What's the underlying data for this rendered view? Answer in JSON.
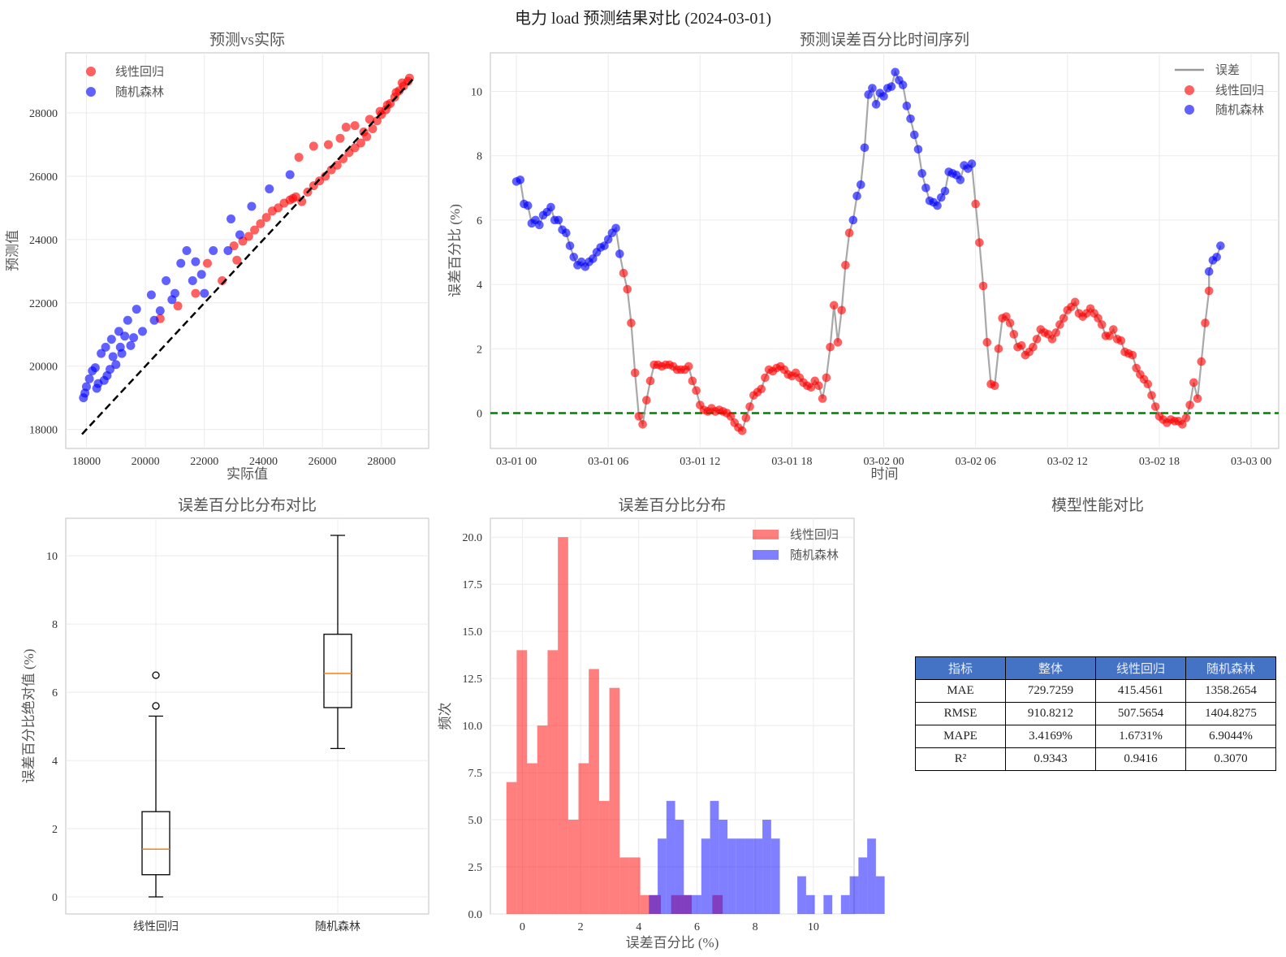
{
  "title": "电力 load 预测结果对比 (2024-03-01)",
  "colors": {
    "lr": "#ff0000",
    "rf": "#0000ff",
    "line": "#999999",
    "zero": "#008000",
    "header": "#4472c4"
  },
  "chart_data": [
    {
      "type": "scatter",
      "title": "预测vs实际",
      "xlabel": "实际值",
      "ylabel": "预测值",
      "xlim": [
        17300,
        29600
      ],
      "ylim": [
        17400,
        29900
      ],
      "xticks": [
        18000,
        20000,
        22000,
        24000,
        26000,
        28000
      ],
      "yticks": [
        18000,
        20000,
        22000,
        24000,
        26000,
        28000
      ],
      "legend": [
        "线性回归",
        "随机森林"
      ],
      "diagonal": [
        17850,
        29100
      ],
      "series": [
        {
          "name": "线性回归",
          "points": [
            [
              20500,
              21500
            ],
            [
              21100,
              21900
            ],
            [
              21700,
              22300
            ],
            [
              22100,
              23250
            ],
            [
              22600,
              22700
            ],
            [
              23000,
              23800
            ],
            [
              23100,
              23350
            ],
            [
              23300,
              23950
            ],
            [
              23500,
              24100
            ],
            [
              23700,
              24300
            ],
            [
              23900,
              24500
            ],
            [
              24100,
              24700
            ],
            [
              24300,
              24900
            ],
            [
              24500,
              25000
            ],
            [
              24700,
              25150
            ],
            [
              24900,
              25250
            ],
            [
              25100,
              25350
            ],
            [
              25300,
              25200
            ],
            [
              25500,
              25500
            ],
            [
              25700,
              25700
            ],
            [
              25900,
              25850
            ],
            [
              26100,
              26000
            ],
            [
              26300,
              26200
            ],
            [
              26500,
              26350
            ],
            [
              26700,
              26550
            ],
            [
              26900,
              26750
            ],
            [
              27100,
              26900
            ],
            [
              27300,
              27050
            ],
            [
              27500,
              27250
            ],
            [
              27700,
              27500
            ],
            [
              27850,
              27750
            ],
            [
              28000,
              27950
            ],
            [
              28150,
              28100
            ],
            [
              28300,
              28300
            ],
            [
              28450,
              28500
            ],
            [
              28600,
              28700
            ],
            [
              28750,
              28850
            ],
            [
              28900,
              29000
            ],
            [
              28950,
              29100
            ],
            [
              25000,
              25300
            ],
            [
              25200,
              26600
            ],
            [
              25700,
              26950
            ],
            [
              26200,
              27000
            ],
            [
              26600,
              27200
            ],
            [
              26800,
              27550
            ],
            [
              27100,
              27600
            ],
            [
              27400,
              27400
            ],
            [
              27600,
              27800
            ],
            [
              27950,
              28050
            ],
            [
              28200,
              28250
            ],
            [
              28500,
              28650
            ],
            [
              28700,
              28950
            ]
          ]
        },
        {
          "name": "随机森林",
          "points": [
            [
              17900,
              19000
            ],
            [
              17950,
              19150
            ],
            [
              18000,
              19350
            ],
            [
              18100,
              19600
            ],
            [
              18200,
              19850
            ],
            [
              18300,
              19950
            ],
            [
              18350,
              19300
            ],
            [
              18400,
              19450
            ],
            [
              18500,
              20400
            ],
            [
              18600,
              19550
            ],
            [
              18650,
              20600
            ],
            [
              18700,
              19700
            ],
            [
              18800,
              19900
            ],
            [
              18850,
              20850
            ],
            [
              18900,
              20300
            ],
            [
              19000,
              20050
            ],
            [
              19100,
              21100
            ],
            [
              19150,
              20600
            ],
            [
              19200,
              20400
            ],
            [
              19300,
              20950
            ],
            [
              19400,
              21450
            ],
            [
              19500,
              20650
            ],
            [
              19600,
              20900
            ],
            [
              19700,
              21800
            ],
            [
              19900,
              21100
            ],
            [
              20200,
              22250
            ],
            [
              20300,
              21450
            ],
            [
              20500,
              21750
            ],
            [
              20700,
              22700
            ],
            [
              20900,
              22100
            ],
            [
              21000,
              22300
            ],
            [
              21200,
              23250
            ],
            [
              21400,
              23650
            ],
            [
              21600,
              22700
            ],
            [
              21700,
              23300
            ],
            [
              21900,
              22900
            ],
            [
              22300,
              23650
            ],
            [
              22800,
              23650
            ],
            [
              22900,
              24650
            ],
            [
              23200,
              24150
            ],
            [
              23600,
              25050
            ],
            [
              24200,
              25600
            ],
            [
              24900,
              26050
            ],
            [
              22000,
              22300
            ]
          ]
        }
      ]
    },
    {
      "type": "line",
      "title": "预测误差百分比时间序列",
      "xlabel": "时间",
      "ylabel": "误差百分比 (%)",
      "xlim": [
        -1.7,
        49.8
      ],
      "ylim": [
        -1.1,
        11.2
      ],
      "xticks": [
        0,
        6,
        12,
        18,
        24,
        30,
        36,
        42,
        48
      ],
      "xticklabels": [
        "03-01 00",
        "03-01 06",
        "03-01 12",
        "03-01 18",
        "03-02 00",
        "03-02 06",
        "03-02 12",
        "03-02 18",
        "03-03 00"
      ],
      "yticks": [
        0,
        2,
        4,
        6,
        8,
        10
      ],
      "legend": [
        "误差",
        "线性回归",
        "随机森林"
      ],
      "zero_line": 0,
      "segments": [
        {
          "model": "随机森林",
          "start": 0,
          "step": 0.25,
          "values": [
            7.2,
            7.25,
            6.5,
            6.45,
            5.9,
            6.0,
            5.85,
            6.15,
            6.25,
            6.4,
            6.0,
            6.0,
            5.7,
            5.6,
            5.2,
            4.85,
            4.6,
            4.7,
            4.55,
            4.7,
            4.8,
            5.0,
            5.15,
            5.2,
            5.4,
            5.6,
            5.75,
            4.95
          ]
        },
        {
          "model": "线性回归",
          "start": 7.0,
          "step": 0.25,
          "values": [
            4.35,
            3.85,
            2.8,
            1.25,
            -0.1,
            -0.35,
            0.4,
            1.0,
            1.5,
            1.5,
            1.45,
            1.5,
            1.5,
            1.45,
            1.35,
            1.35,
            1.35,
            1.45,
            1.0,
            0.7,
            0.25,
            0.1,
            0.05,
            0.15,
            0.05,
            0.1,
            0.05,
            0.0,
            -0.1,
            -0.3,
            -0.45,
            -0.55,
            -0.15,
            0.2,
            0.55,
            0.65,
            0.75,
            1.1,
            1.35,
            1.3,
            1.4,
            1.45,
            1.35,
            1.2,
            1.15,
            1.25,
            1.1,
            0.95,
            0.85,
            0.8,
            1.0,
            0.85,
            0.45,
            1.1,
            2.05,
            3.35,
            2.2,
            3.2,
            4.6,
            5.6
          ]
        },
        {
          "model": "随机森林",
          "start": 22.0,
          "step": 0.25,
          "values": [
            6.0,
            6.75,
            7.1,
            8.25,
            9.9,
            10.1,
            9.6,
            9.95,
            9.85,
            10.1,
            10.15,
            10.6,
            10.35,
            10.2,
            9.55,
            9.15,
            8.65,
            8.2,
            7.45,
            7.0,
            6.6,
            6.55,
            6.45,
            6.7,
            6.9,
            7.5,
            7.45,
            7.4,
            7.25,
            7.7,
            7.6,
            7.75
          ]
        },
        {
          "model": "线性回归",
          "start": 30.0,
          "step": 0.25,
          "values": [
            6.5,
            5.3,
            3.95,
            2.2,
            0.9,
            0.85,
            2.0,
            2.95,
            3.0,
            2.8,
            2.45,
            2.05,
            2.1,
            1.8,
            1.9,
            2.05,
            2.3,
            2.6,
            2.5,
            2.45,
            2.3,
            2.5,
            2.75,
            2.95,
            3.2,
            3.3,
            3.45,
            3.1,
            3.0,
            3.1,
            3.25,
            3.1,
            2.95,
            2.75,
            2.4,
            2.4,
            2.6,
            2.3,
            2.25,
            1.9,
            1.85,
            1.8,
            1.4,
            1.2,
            1.05,
            0.9,
            0.55,
            0.2,
            -0.1,
            -0.2,
            -0.3,
            -0.2,
            -0.25,
            -0.25,
            -0.35,
            -0.15,
            0.25,
            0.95,
            0.45,
            1.6,
            2.8,
            3.8
          ]
        },
        {
          "model": "随机森林",
          "start": 45.25,
          "step": 0.25,
          "values": [
            4.4,
            4.75,
            4.85,
            5.2
          ]
        }
      ]
    },
    {
      "type": "box",
      "title": "误差百分比分布对比",
      "ylabel": "误差百分比绝对值 (%)",
      "ylim": [
        -0.5,
        11.1
      ],
      "yticks": [
        0,
        2,
        4,
        6,
        8,
        10
      ],
      "categories": [
        "线性回归",
        "随机森林"
      ],
      "boxes": [
        {
          "name": "线性回归",
          "whislo": 0.0,
          "q1": 0.65,
          "med": 1.4,
          "q3": 2.5,
          "whishi": 5.3,
          "fliers": [
            5.6,
            6.5
          ]
        },
        {
          "name": "随机森林",
          "whislo": 4.35,
          "q1": 5.55,
          "med": 6.55,
          "q3": 7.7,
          "whishi": 10.6,
          "fliers": []
        }
      ]
    },
    {
      "type": "histogram",
      "title": "误差百分比分布",
      "xlabel": "误差百分比 (%)",
      "ylabel": "频次",
      "xlim": [
        -1.1,
        11.4
      ],
      "ylim": [
        0,
        21
      ],
      "xticks": [
        0,
        2,
        4,
        6,
        8,
        10
      ],
      "yticks": [
        0.0,
        2.5,
        5.0,
        7.5,
        10.0,
        12.5,
        15.0,
        17.5,
        20.0
      ],
      "legend": [
        "线性回归",
        "随机森林"
      ],
      "series": [
        {
          "name": "线性回归",
          "start": -0.55,
          "width": 0.354,
          "counts": [
            7,
            14,
            8,
            10,
            14,
            20,
            5,
            8,
            13,
            6,
            12,
            3,
            3,
            1,
            1,
            0,
            1,
            1,
            0,
            0,
            1,
            0,
            0,
            0,
            0,
            0,
            0,
            0,
            0,
            0,
            0,
            0,
            0,
            0,
            0
          ]
        },
        {
          "name": "随机森林",
          "start": 4.35,
          "width": 0.3,
          "counts": [
            1,
            4,
            6,
            5,
            1,
            1,
            4,
            6,
            5,
            4,
            4,
            4,
            4,
            5,
            4,
            0,
            0,
            2,
            1,
            0,
            1,
            0,
            1,
            2,
            3,
            4,
            2
          ]
        }
      ]
    }
  ],
  "table": {
    "title": "模型性能对比",
    "headers": [
      "指标",
      "整体",
      "线性回归",
      "随机森林"
    ],
    "rows": [
      [
        "MAE",
        "729.7259",
        "415.4561",
        "1358.2654"
      ],
      [
        "RMSE",
        "910.8212",
        "507.5654",
        "1404.8275"
      ],
      [
        "MAPE",
        "3.4169%",
        "1.6731%",
        "6.9044%"
      ],
      [
        "R²",
        "0.9343",
        "0.9416",
        "0.3070"
      ]
    ]
  }
}
